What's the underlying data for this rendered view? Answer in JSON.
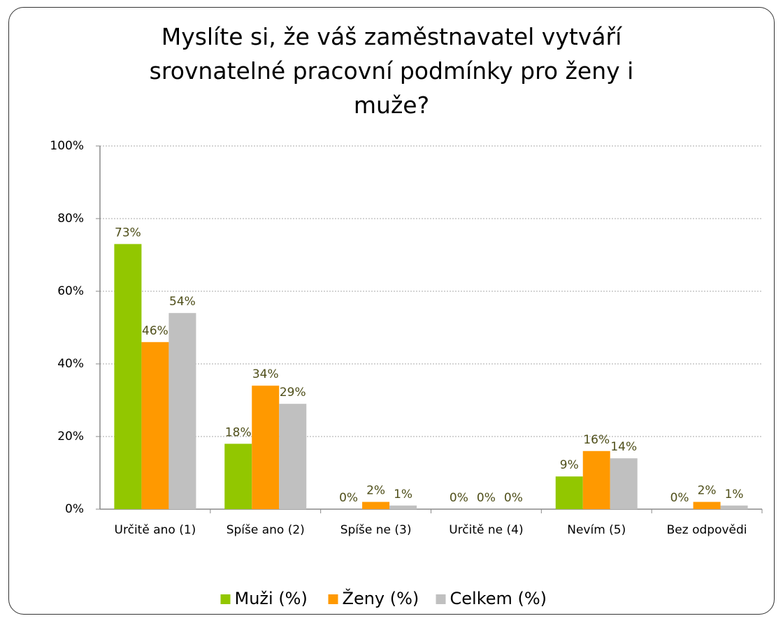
{
  "chart_data": {
    "type": "bar",
    "title": "Myslíte si, že váš zaměstnavatel  vytváří srovnatelné pracovní podmínky pro ženy i muže?",
    "categories": [
      "Určitě ano (1)",
      "Spíše ano (2)",
      "Spíše ne (3)",
      "Určitě ne (4)",
      "Nevím (5)",
      "Bez odpovědi"
    ],
    "series": [
      {
        "name": "Muži (%)",
        "color": "#92c700",
        "values": [
          73,
          18,
          0,
          0,
          9,
          0
        ],
        "value_labels": [
          "73%",
          "18%",
          "0%",
          "0%",
          "9%",
          "0%"
        ]
      },
      {
        "name": "Ženy (%)",
        "color": "#ff9900",
        "values": [
          46,
          34,
          2,
          0,
          16,
          2
        ],
        "value_labels": [
          "46%",
          "34%",
          "2%",
          "0%",
          "16%",
          "2%"
        ]
      },
      {
        "name": "Celkem (%)",
        "color": "#c0c0c0",
        "values": [
          54,
          29,
          1,
          0,
          14,
          1
        ],
        "value_labels": [
          "54%",
          "29%",
          "1%",
          "0%",
          "14%",
          "1%"
        ]
      }
    ],
    "ylim": [
      0,
      100
    ],
    "yticks": [
      {
        "value": 0,
        "label": "0%"
      },
      {
        "value": 20,
        "label": "20%"
      },
      {
        "value": 40,
        "label": "40%"
      },
      {
        "value": 60,
        "label": "60%"
      },
      {
        "value": 80,
        "label": "80%"
      },
      {
        "value": 100,
        "label": "100%"
      }
    ],
    "grid": true,
    "legend": "bottom"
  }
}
